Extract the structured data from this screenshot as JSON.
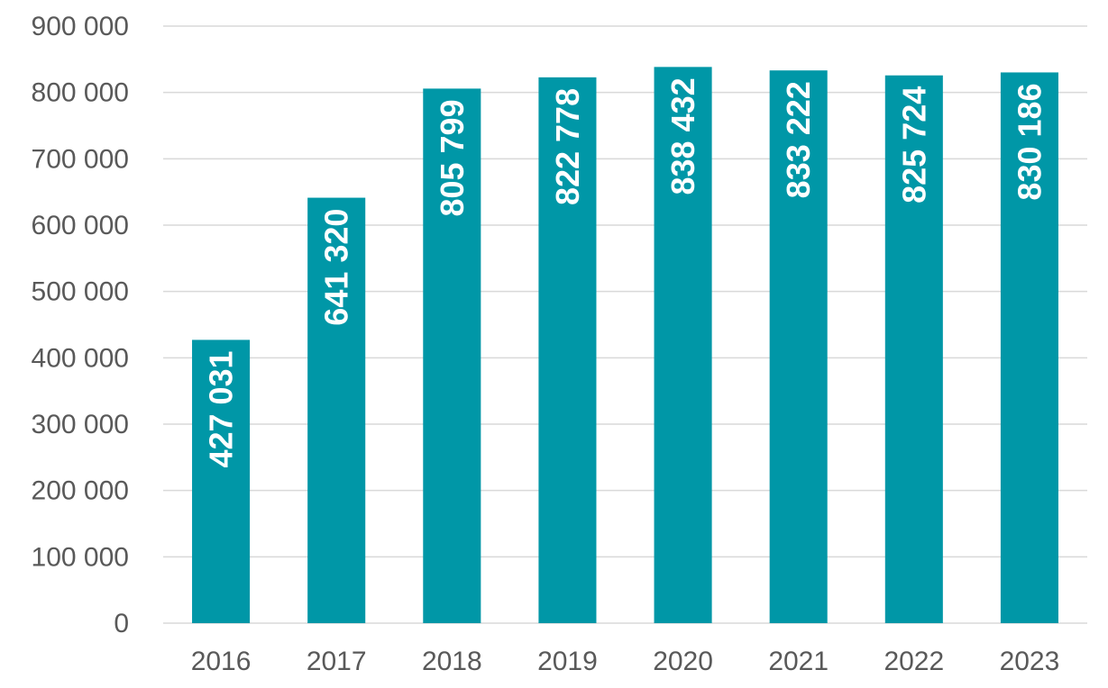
{
  "chart_data": {
    "type": "bar",
    "categories": [
      "2016",
      "2017",
      "2018",
      "2019",
      "2020",
      "2021",
      "2022",
      "2023"
    ],
    "values": [
      427031,
      641320,
      805799,
      822778,
      838432,
      833222,
      825724,
      830186
    ],
    "data_labels": [
      "427 031",
      "641 320",
      "805 799",
      "822 778",
      "838 432",
      "833 222",
      "825 724",
      "830 186"
    ],
    "title": "",
    "xlabel": "",
    "ylabel": "",
    "ylim": [
      0,
      900000
    ],
    "yticks": [
      0,
      100000,
      200000,
      300000,
      400000,
      500000,
      600000,
      700000,
      800000,
      900000
    ],
    "ytick_labels": [
      "0",
      "100 000",
      "200 000",
      "300 000",
      "400 000",
      "500 000",
      "600 000",
      "700 000",
      "800 000",
      "900 000"
    ],
    "grid": true,
    "legend": "none",
    "bar_color": "#0097a7",
    "label_color": "#ffffff",
    "tick_color": "#595959",
    "grid_color": "#d9d9d9"
  }
}
